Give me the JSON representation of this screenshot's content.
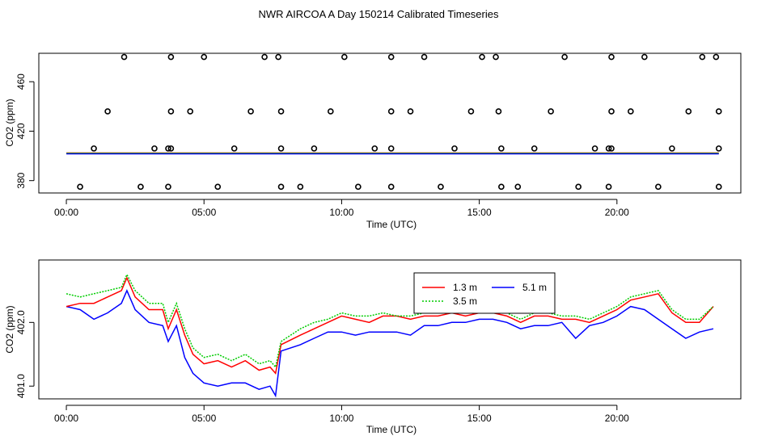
{
  "title": "NWR AIRCOA A  Day 150214  Calibrated Timeseries",
  "chart_data": [
    {
      "type": "scatter",
      "xlabel": "Time (UTC)",
      "ylabel": "CO2 (ppm)",
      "xlim": [
        -1,
        24.5
      ],
      "ylim": [
        370,
        483
      ],
      "x_ticks": [
        0,
        5,
        10,
        15,
        20
      ],
      "x_tick_labels": [
        "00:00",
        "05:00",
        "10:00",
        "15:00",
        "20:00"
      ],
      "y_ticks": [
        380,
        420,
        460
      ],
      "y_tick_labels": [
        "380",
        "420",
        "460"
      ],
      "grid": false,
      "points": [
        {
          "y": 480,
          "x": [
            2.1,
            3.8,
            5.0,
            7.2,
            7.7,
            10.1,
            11.8,
            13.0,
            15.1,
            15.6,
            18.1,
            19.8,
            21.0,
            23.1,
            23.6
          ]
        },
        {
          "y": 436,
          "x": [
            1.5,
            3.8,
            4.5,
            6.7,
            7.8,
            9.6,
            11.8,
            12.5,
            14.7,
            15.7,
            17.6,
            19.8,
            20.5,
            22.6,
            23.7
          ]
        },
        {
          "y": 406,
          "x": [
            1.0,
            3.2,
            3.7,
            3.8,
            6.1,
            7.8,
            9.0,
            11.2,
            11.8,
            14.1,
            15.8,
            17.0,
            19.2,
            19.7,
            19.8,
            22.0,
            23.7
          ]
        },
        {
          "y": 375,
          "x": [
            0.5,
            2.7,
            3.7,
            5.5,
            7.8,
            8.5,
            10.6,
            11.8,
            13.6,
            15.8,
            16.4,
            18.6,
            19.7,
            21.5,
            23.7
          ]
        }
      ],
      "baseline_level": 402,
      "baseline_colors": [
        "#ff0000",
        "#00cc00",
        "#0000ff"
      ]
    },
    {
      "type": "line",
      "xlabel": "Time (UTC)",
      "ylabel": "CO2 (ppm)",
      "xlim": [
        -1,
        24.5
      ],
      "ylim": [
        400.8,
        402.98
      ],
      "x_ticks": [
        0,
        5,
        10,
        15,
        20
      ],
      "x_tick_labels": [
        "00:00",
        "05:00",
        "10:00",
        "15:00",
        "20:00"
      ],
      "y_ticks": [
        401.0,
        402.0
      ],
      "y_tick_labels": [
        "401.0",
        "402.0"
      ],
      "grid": false,
      "legend_placement": "top-center",
      "series": [
        {
          "name": "1.3 m",
          "color": "#ff0000",
          "x": [
            0,
            0.5,
            1,
            1.5,
            2,
            2.2,
            2.5,
            3,
            3.5,
            3.7,
            4,
            4.3,
            4.6,
            5,
            5.5,
            6,
            6.5,
            7,
            7.4,
            7.6,
            7.8,
            8.5,
            9,
            9.5,
            10,
            10.5,
            11,
            11.5,
            12,
            12.5,
            13,
            13.5,
            14,
            14.5,
            15,
            15.5,
            16,
            16.5,
            17,
            17.5,
            18,
            18.5,
            19,
            19.5,
            20,
            20.5,
            21,
            21.5,
            22,
            22.5,
            23,
            23.5
          ],
          "y": [
            402.25,
            402.3,
            402.3,
            402.4,
            402.5,
            402.7,
            402.4,
            402.2,
            402.2,
            401.9,
            402.2,
            401.8,
            401.5,
            401.35,
            401.4,
            401.3,
            401.4,
            401.25,
            401.3,
            401.2,
            401.65,
            401.8,
            401.9,
            402.0,
            402.1,
            402.05,
            402.0,
            402.1,
            402.1,
            402.05,
            402.1,
            402.1,
            402.15,
            402.1,
            402.15,
            402.15,
            402.1,
            402.0,
            402.1,
            402.1,
            402.05,
            402.05,
            402.0,
            402.1,
            402.2,
            402.35,
            402.4,
            402.45,
            402.15,
            402.0,
            402.0,
            402.25
          ]
        },
        {
          "name": "3.5 m",
          "color": "#00cc00",
          "x": [
            0,
            0.5,
            1,
            1.5,
            2,
            2.2,
            2.5,
            3,
            3.5,
            3.7,
            4,
            4.3,
            4.6,
            5,
            5.5,
            6,
            6.5,
            7,
            7.4,
            7.6,
            7.8,
            8.5,
            9,
            9.5,
            10,
            10.5,
            11,
            11.5,
            12,
            12.5,
            13,
            13.5,
            14,
            14.5,
            15,
            15.5,
            16,
            16.5,
            17,
            17.5,
            18,
            18.5,
            19,
            19.5,
            20,
            20.5,
            21,
            21.5,
            22,
            22.5,
            23,
            23.5
          ],
          "y": [
            402.45,
            402.4,
            402.45,
            402.5,
            402.55,
            402.75,
            402.5,
            402.3,
            402.3,
            402.0,
            402.3,
            401.9,
            401.6,
            401.45,
            401.5,
            401.4,
            401.5,
            401.35,
            401.4,
            401.3,
            401.7,
            401.9,
            402.0,
            402.05,
            402.15,
            402.1,
            402.1,
            402.15,
            402.1,
            402.1,
            402.15,
            402.15,
            402.2,
            402.15,
            402.2,
            402.2,
            402.15,
            402.05,
            402.15,
            402.15,
            402.1,
            402.1,
            402.05,
            402.15,
            402.25,
            402.4,
            402.45,
            402.5,
            402.2,
            402.05,
            402.05,
            402.25
          ]
        },
        {
          "name": "5.1 m",
          "color": "#0000ff",
          "x": [
            0,
            0.5,
            1,
            1.5,
            2,
            2.2,
            2.5,
            3,
            3.5,
            3.7,
            4,
            4.3,
            4.6,
            5,
            5.5,
            6,
            6.5,
            7,
            7.4,
            7.6,
            7.8,
            8.5,
            9,
            9.5,
            10,
            10.5,
            11,
            11.5,
            12,
            12.5,
            13,
            13.5,
            14,
            14.5,
            15,
            15.5,
            16,
            16.5,
            17,
            17.5,
            18,
            18.5,
            19,
            19.5,
            20,
            20.5,
            21,
            21.5,
            22,
            22.5,
            23,
            23.5
          ],
          "y": [
            402.25,
            402.2,
            402.05,
            402.15,
            402.3,
            402.5,
            402.2,
            402.0,
            401.95,
            401.7,
            401.95,
            401.45,
            401.2,
            401.05,
            401.0,
            401.05,
            401.05,
            400.95,
            401.0,
            400.85,
            401.55,
            401.65,
            401.75,
            401.85,
            401.85,
            401.8,
            401.85,
            401.85,
            401.85,
            401.8,
            401.95,
            401.95,
            402.0,
            402.0,
            402.05,
            402.05,
            402.0,
            401.9,
            401.95,
            401.95,
            402.0,
            401.75,
            401.95,
            402.0,
            402.1,
            402.25,
            402.2,
            402.05,
            401.9,
            401.75,
            401.85,
            401.9
          ]
        }
      ]
    }
  ]
}
